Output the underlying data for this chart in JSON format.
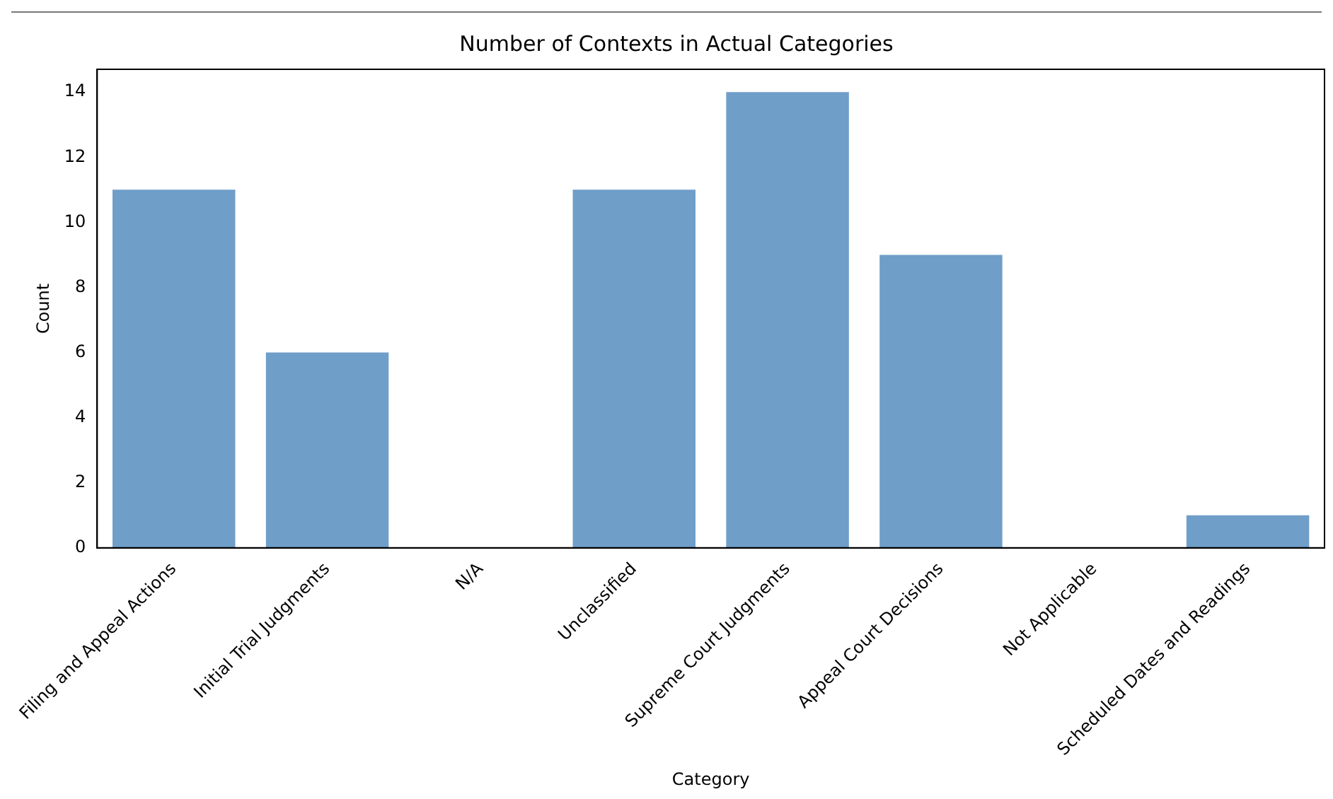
{
  "chart_data": {
    "type": "bar",
    "title": "Number of Contexts in Actual Categories",
    "xlabel": "Category",
    "ylabel": "Count",
    "categories": [
      "Filing and Appeal Actions",
      "Initial Trial Judgments",
      "N/A",
      "Unclassified",
      "Supreme Court Judgments",
      "Appeal Court Decisions",
      "Not Applicable",
      "Scheduled Dates and Readings"
    ],
    "values": [
      11,
      6,
      0,
      11,
      14,
      9,
      0,
      1
    ],
    "color": "#6f9ec8",
    "ylim": [
      0,
      14.7
    ],
    "yticks": [
      0,
      2,
      4,
      6,
      8,
      10,
      12,
      14
    ],
    "grid": false,
    "legend": false
  }
}
